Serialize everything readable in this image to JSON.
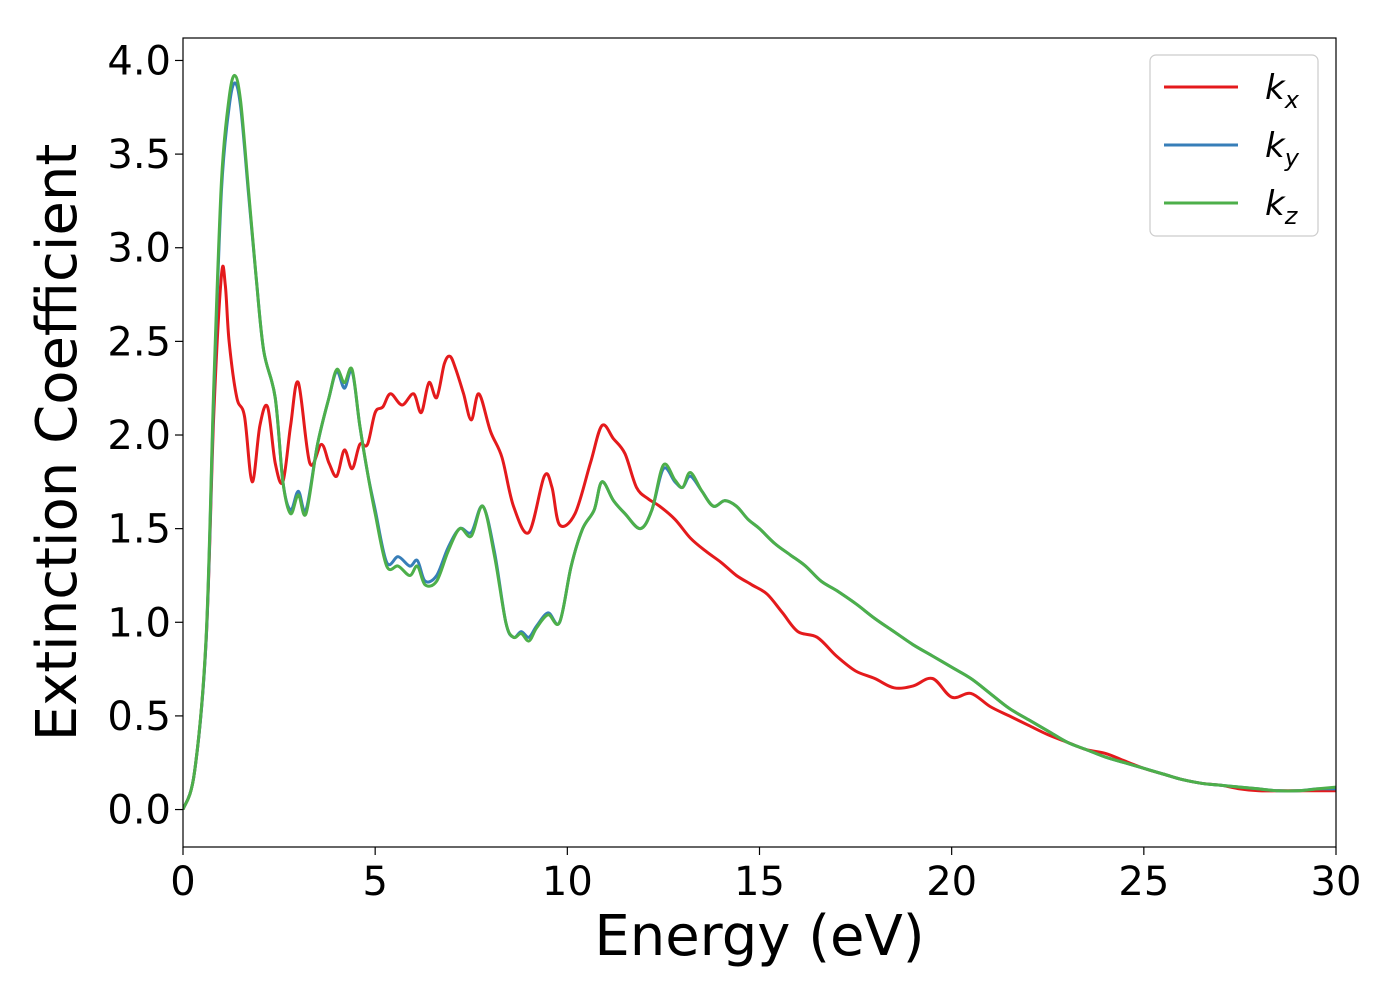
{
  "chart_data": {
    "type": "line",
    "title": "",
    "xlabel": "Energy (eV)",
    "ylabel": "Extinction Coefficient",
    "xlim": [
      0,
      30
    ],
    "ylim": [
      -0.2,
      4.12
    ],
    "xticks": [
      0,
      5,
      10,
      15,
      20,
      25,
      30
    ],
    "xtick_labels": [
      "0",
      "5",
      "10",
      "15",
      "20",
      "25",
      "30"
    ],
    "yticks": [
      0.0,
      0.5,
      1.0,
      1.5,
      2.0,
      2.5,
      3.0,
      3.5,
      4.0
    ],
    "ytick_labels": [
      "0.0",
      "0.5",
      "1.0",
      "1.5",
      "2.0",
      "2.5",
      "3.0",
      "3.5",
      "4.0"
    ],
    "grid": false,
    "legend_position": "top-right",
    "series": [
      {
        "name": "k",
        "subscript": "x",
        "color": "#e41a1c",
        "x": [
          0,
          0.3,
          0.6,
          0.8,
          1.0,
          1.1,
          1.2,
          1.4,
          1.6,
          1.8,
          2.0,
          2.2,
          2.4,
          2.6,
          2.8,
          3.0,
          3.3,
          3.6,
          3.8,
          4.0,
          4.2,
          4.4,
          4.6,
          4.8,
          5.0,
          5.2,
          5.4,
          5.7,
          6.0,
          6.2,
          6.4,
          6.6,
          6.8,
          6.95,
          7.1,
          7.3,
          7.5,
          7.7,
          8.0,
          8.3,
          8.6,
          9.0,
          9.4,
          9.6,
          9.8,
          10.2,
          10.6,
          10.9,
          11.2,
          11.5,
          11.8,
          12.1,
          12.4,
          12.8,
          13.2,
          13.6,
          14.0,
          14.4,
          14.8,
          15.2,
          15.6,
          16.0,
          16.5,
          17.0,
          17.5,
          18.0,
          18.5,
          19.0,
          19.5,
          20.0,
          20.5,
          21.0,
          21.5,
          22.0,
          22.5,
          23.0,
          23.5,
          24.0,
          24.5,
          25.0,
          25.5,
          26.0,
          26.5,
          27.0,
          27.5,
          28.0,
          28.5,
          29.0,
          29.5,
          30.0
        ],
        "y": [
          0.0,
          0.2,
          0.9,
          2.1,
          2.85,
          2.8,
          2.5,
          2.2,
          2.1,
          1.75,
          2.05,
          2.15,
          1.85,
          1.75,
          2.05,
          2.28,
          1.85,
          1.95,
          1.85,
          1.78,
          1.92,
          1.82,
          1.95,
          1.95,
          2.12,
          2.15,
          2.22,
          2.16,
          2.22,
          2.12,
          2.28,
          2.2,
          2.38,
          2.42,
          2.35,
          2.22,
          2.08,
          2.22,
          2.02,
          1.88,
          1.62,
          1.48,
          1.78,
          1.72,
          1.52,
          1.58,
          1.85,
          2.05,
          1.98,
          1.9,
          1.72,
          1.66,
          1.62,
          1.55,
          1.45,
          1.38,
          1.32,
          1.25,
          1.2,
          1.15,
          1.05,
          0.95,
          0.92,
          0.82,
          0.74,
          0.7,
          0.65,
          0.66,
          0.7,
          0.6,
          0.62,
          0.55,
          0.5,
          0.45,
          0.4,
          0.36,
          0.32,
          0.3,
          0.26,
          0.22,
          0.19,
          0.16,
          0.14,
          0.13,
          0.11,
          0.1,
          0.1,
          0.1,
          0.1,
          0.1
        ]
      },
      {
        "name": "k",
        "subscript": "y",
        "color": "#377eb8",
        "x": [
          0,
          0.3,
          0.6,
          0.8,
          1.0,
          1.2,
          1.35,
          1.5,
          1.7,
          1.9,
          2.1,
          2.4,
          2.6,
          2.8,
          3.0,
          3.2,
          3.5,
          3.8,
          4.0,
          4.2,
          4.4,
          4.6,
          4.8,
          5.0,
          5.3,
          5.6,
          5.9,
          6.1,
          6.3,
          6.6,
          6.9,
          7.2,
          7.5,
          7.8,
          8.1,
          8.4,
          8.6,
          8.8,
          9.0,
          9.2,
          9.5,
          9.8,
          10.1,
          10.4,
          10.7,
          10.9,
          11.2,
          11.5,
          11.9,
          12.2,
          12.5,
          12.8,
          13.0,
          13.2,
          13.5,
          13.8,
          14.1,
          14.4,
          14.7,
          15.0,
          15.4,
          15.8,
          16.2,
          16.6,
          17.0,
          17.5,
          18.0,
          18.5,
          19.0,
          19.5,
          20.0,
          20.5,
          21.0,
          21.5,
          22.0,
          22.5,
          23.0,
          23.5,
          24.0,
          24.5,
          25.0,
          25.5,
          26.0,
          26.5,
          27.0,
          27.5,
          28.0,
          28.5,
          29.0,
          29.5,
          30.0
        ],
        "y": [
          0.0,
          0.2,
          0.9,
          2.2,
          3.3,
          3.75,
          3.88,
          3.75,
          3.3,
          2.85,
          2.45,
          2.2,
          1.75,
          1.6,
          1.7,
          1.6,
          1.95,
          2.2,
          2.34,
          2.25,
          2.34,
          2.05,
          1.8,
          1.6,
          1.32,
          1.35,
          1.3,
          1.33,
          1.22,
          1.25,
          1.4,
          1.5,
          1.48,
          1.62,
          1.38,
          1.0,
          0.92,
          0.95,
          0.92,
          0.98,
          1.05,
          1.0,
          1.3,
          1.5,
          1.6,
          1.75,
          1.65,
          1.58,
          1.5,
          1.6,
          1.82,
          1.75,
          1.72,
          1.78,
          1.7,
          1.62,
          1.65,
          1.62,
          1.55,
          1.5,
          1.42,
          1.36,
          1.3,
          1.22,
          1.17,
          1.1,
          1.02,
          0.95,
          0.88,
          0.82,
          0.76,
          0.7,
          0.62,
          0.54,
          0.48,
          0.42,
          0.36,
          0.32,
          0.28,
          0.25,
          0.22,
          0.19,
          0.16,
          0.14,
          0.13,
          0.12,
          0.11,
          0.1,
          0.1,
          0.11,
          0.11
        ]
      },
      {
        "name": "k",
        "subscript": "z",
        "color": "#4daf4a",
        "x": [
          0,
          0.3,
          0.6,
          0.8,
          1.0,
          1.2,
          1.35,
          1.5,
          1.7,
          1.9,
          2.1,
          2.4,
          2.6,
          2.8,
          3.0,
          3.2,
          3.5,
          3.8,
          4.0,
          4.2,
          4.4,
          4.6,
          4.8,
          5.0,
          5.3,
          5.6,
          5.9,
          6.1,
          6.3,
          6.6,
          6.9,
          7.2,
          7.5,
          7.8,
          8.1,
          8.4,
          8.6,
          8.8,
          9.0,
          9.2,
          9.5,
          9.8,
          10.1,
          10.4,
          10.7,
          10.9,
          11.2,
          11.5,
          11.9,
          12.2,
          12.5,
          12.8,
          13.0,
          13.2,
          13.5,
          13.8,
          14.1,
          14.4,
          14.7,
          15.0,
          15.4,
          15.8,
          16.2,
          16.6,
          17.0,
          17.5,
          18.0,
          18.5,
          19.0,
          19.5,
          20.0,
          20.5,
          21.0,
          21.5,
          22.0,
          22.5,
          23.0,
          23.5,
          24.0,
          24.5,
          25.0,
          25.5,
          26.0,
          26.5,
          27.0,
          27.5,
          28.0,
          28.5,
          29.0,
          29.5,
          30.0
        ],
        "y": [
          0.0,
          0.2,
          0.92,
          2.25,
          3.35,
          3.8,
          3.92,
          3.78,
          3.32,
          2.85,
          2.45,
          2.2,
          1.75,
          1.58,
          1.68,
          1.58,
          1.95,
          2.2,
          2.35,
          2.28,
          2.35,
          2.05,
          1.8,
          1.58,
          1.3,
          1.3,
          1.25,
          1.3,
          1.2,
          1.22,
          1.38,
          1.5,
          1.46,
          1.62,
          1.36,
          1.0,
          0.92,
          0.94,
          0.9,
          0.97,
          1.04,
          1.0,
          1.3,
          1.5,
          1.6,
          1.75,
          1.65,
          1.58,
          1.5,
          1.6,
          1.84,
          1.76,
          1.72,
          1.8,
          1.7,
          1.62,
          1.65,
          1.62,
          1.55,
          1.5,
          1.42,
          1.36,
          1.3,
          1.22,
          1.17,
          1.1,
          1.02,
          0.95,
          0.88,
          0.82,
          0.76,
          0.7,
          0.62,
          0.54,
          0.48,
          0.42,
          0.36,
          0.32,
          0.28,
          0.25,
          0.22,
          0.19,
          0.16,
          0.14,
          0.13,
          0.12,
          0.11,
          0.1,
          0.1,
          0.11,
          0.12
        ]
      }
    ]
  }
}
